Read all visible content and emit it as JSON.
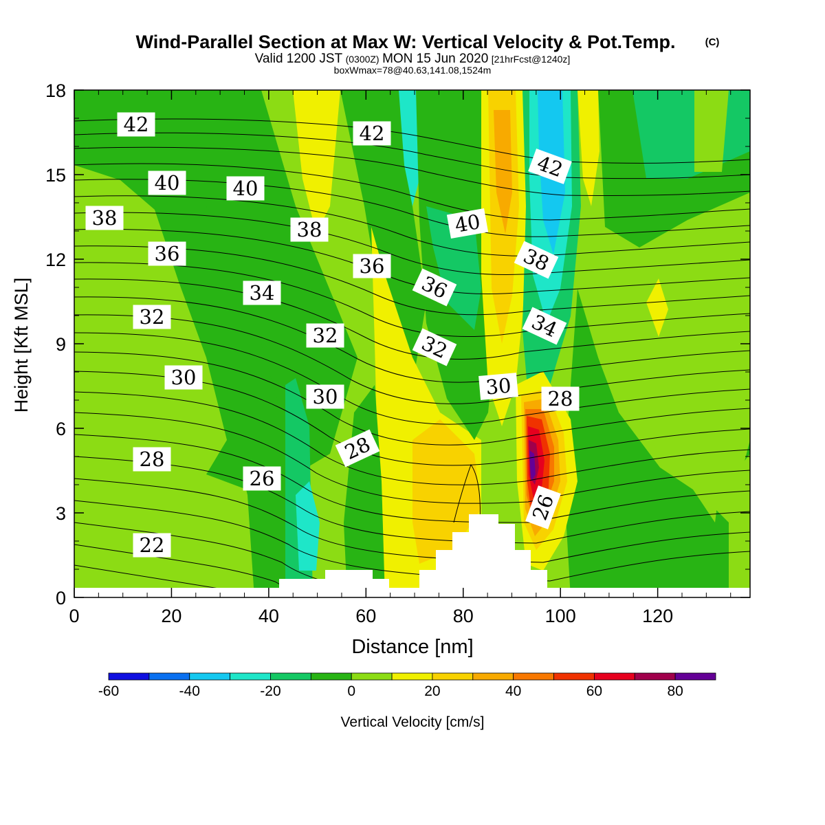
{
  "chart_data": {
    "type": "heatmap",
    "title": "Wind-Parallel Section at Max W: Vertical Velocity & Pot.Temp.",
    "title_mark": "(C)",
    "subtitle": {
      "valid_a": "Valid 1200 JST",
      "valid_b": "(0300Z)",
      "valid_c": "MON 15 Jun 2020",
      "valid_d": "[21hrFcst@1240z]"
    },
    "box_line": "boxWmax=78@40.63,141.08,1524m",
    "xlabel": "Distance [nm]",
    "ylabel": "Height [Kft MSL]",
    "xlim": [
      0,
      139
    ],
    "ylim": [
      0,
      18
    ],
    "x_ticks": [
      "0",
      "20",
      "40",
      "60",
      "80",
      "100",
      "120"
    ],
    "y_ticks": [
      "0",
      "3",
      "6",
      "9",
      "12",
      "15",
      "18"
    ],
    "colorbar": {
      "label": "Vertical Velocity [cm/s]",
      "tick_labels": [
        "-60",
        "-40",
        "-20",
        "0",
        "20",
        "40",
        "60",
        "80"
      ],
      "levels": [
        -60,
        -50,
        -40,
        -30,
        -20,
        -10,
        0,
        10,
        20,
        30,
        40,
        50,
        60,
        70,
        80,
        90
      ],
      "colors": [
        "#0f0fe0",
        "#0a70f0",
        "#14c8f0",
        "#1ee6c8",
        "#14c864",
        "#28b414",
        "#8cdc14",
        "#f0f000",
        "#f8d200",
        "#f8aa00",
        "#f87800",
        "#f03200",
        "#e6001e",
        "#a0004b",
        "#640096"
      ]
    },
    "contour_labels": [
      "42",
      "42",
      "42",
      "40",
      "40",
      "40",
      "38",
      "38",
      "38",
      "36",
      "36",
      "36",
      "34",
      "34",
      "32",
      "32",
      "32",
      "30",
      "30",
      "30",
      "28",
      "28",
      "28",
      "26",
      "26",
      "22"
    ],
    "max_w": 78
  }
}
